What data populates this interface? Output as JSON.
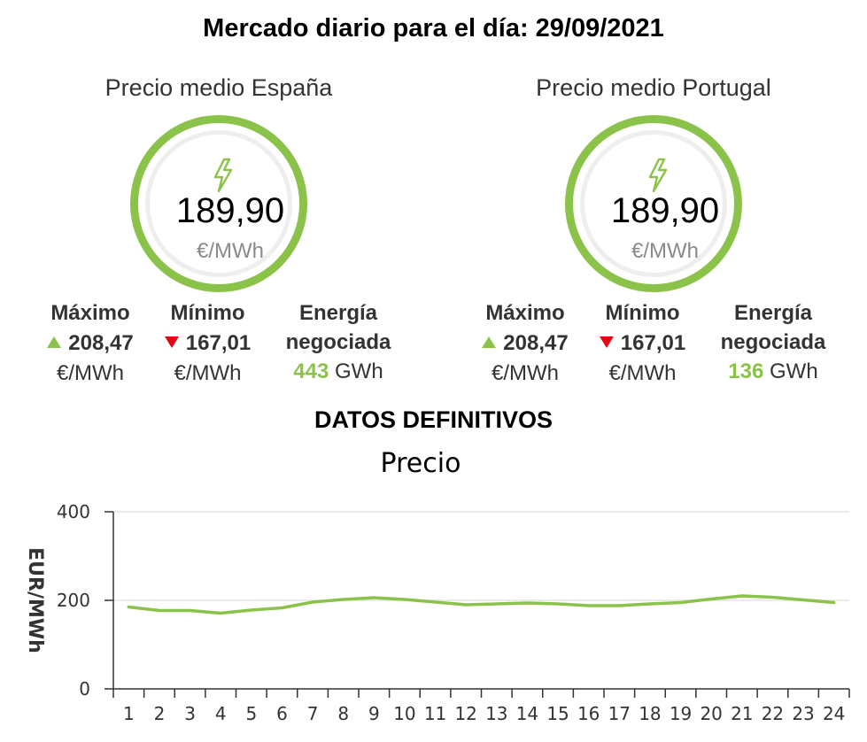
{
  "header": {
    "title": "Mercado diario para el día: 29/09/2021"
  },
  "spain": {
    "title": "Precio medio España",
    "price": "189,90",
    "price_unit": "€/MWh",
    "max_label": "Máximo",
    "max_value": "208,47",
    "max_unit": "€/MWh",
    "min_label": "Mínimo",
    "min_value": "167,01",
    "min_unit": "€/MWh",
    "energy_label_1": "Energía",
    "energy_label_2": "negociada",
    "energy_value": "443",
    "energy_unit": "GWh"
  },
  "portugal": {
    "title": "Precio medio Portugal",
    "price": "189,90",
    "price_unit": "€/MWh",
    "max_label": "Máximo",
    "max_value": "208,47",
    "max_unit": "€/MWh",
    "min_label": "Mínimo",
    "min_value": "167,01",
    "min_unit": "€/MWh",
    "energy_label_1": "Energía",
    "energy_label_2": "negociada",
    "energy_value": "136",
    "energy_unit": "GWh"
  },
  "section": {
    "title": "DATOS DEFINITIVOS"
  },
  "colors": {
    "accent": "#8bc34a",
    "down": "#e30613",
    "text": "#333333",
    "muted": "#8a8a8a"
  },
  "icons": {
    "gauge": "lightning-bolt-icon",
    "max": "triangle-up-icon",
    "min": "triangle-down-icon"
  },
  "chart_data": {
    "type": "line",
    "title": "Precio",
    "xlabel": "",
    "ylabel": "EUR/MWh",
    "categories": [
      "1",
      "2",
      "3",
      "4",
      "5",
      "6",
      "7",
      "8",
      "9",
      "10",
      "11",
      "12",
      "13",
      "14",
      "15",
      "16",
      "17",
      "18",
      "19",
      "20",
      "21",
      "22",
      "23",
      "24"
    ],
    "series": [
      {
        "values": [
          185,
          177,
          177,
          171,
          178,
          183,
          196,
          202,
          206,
          202,
          196,
          190,
          192,
          194,
          192,
          188,
          188,
          192,
          195,
          203,
          210,
          207,
          201,
          195
        ]
      }
    ],
    "ylim": [
      0,
      400
    ],
    "yticks": [
      0,
      200,
      400
    ],
    "grid": true,
    "legend": "none"
  }
}
